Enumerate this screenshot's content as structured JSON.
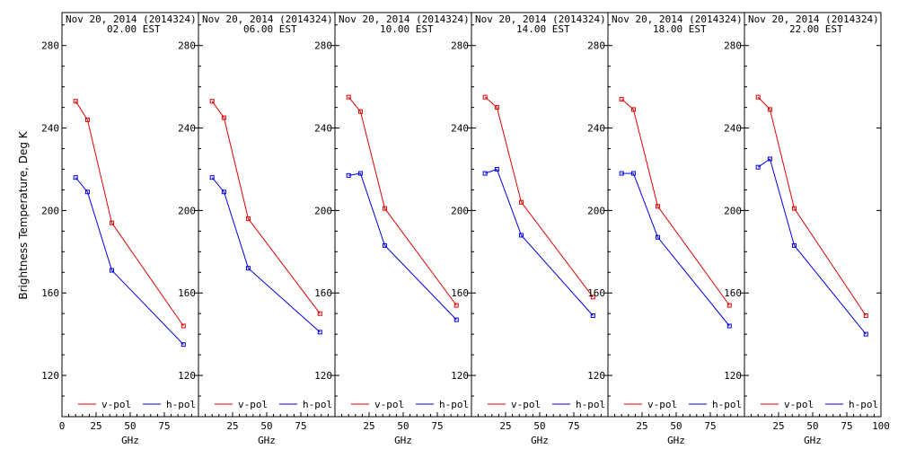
{
  "figure": {
    "ylabel": "Brightness Temperature, Deg K",
    "xlabel": "GHz",
    "colors": {
      "v": "#e00000",
      "h": "#0000e0"
    }
  },
  "chart_data": [
    {
      "type": "line",
      "title": "Nov 20, 2014 (2014324)",
      "subtitle": "02.00 EST",
      "xlabel": "GHz",
      "ylabel": "Brightness Temperature, Deg K",
      "xlim": [
        0,
        100
      ],
      "ylim": [
        100,
        296
      ],
      "xticks": [
        0,
        25,
        50,
        75
      ],
      "yticks": [
        120,
        160,
        200,
        240,
        280
      ],
      "legend": "bottom",
      "series": [
        {
          "name": "v-pol",
          "color": "#e00000",
          "x": [
            10,
            18.7,
            36.5,
            89
          ],
          "y": [
            253,
            244,
            194,
            144
          ]
        },
        {
          "name": "h-pol",
          "color": "#0000e0",
          "x": [
            10,
            18.7,
            36.5,
            89
          ],
          "y": [
            216,
            209,
            171,
            135
          ]
        }
      ]
    },
    {
      "type": "line",
      "title": "Nov 20, 2014 (2014324)",
      "subtitle": "06.00 EST",
      "xlabel": "GHz",
      "ylabel": "Brightness Temperature, Deg K",
      "xlim": [
        0,
        100
      ],
      "ylim": [
        100,
        296
      ],
      "xticks": [
        25,
        50,
        75
      ],
      "yticks": [
        120,
        160,
        200,
        240,
        280
      ],
      "legend": "bottom",
      "series": [
        {
          "name": "v-pol",
          "color": "#e00000",
          "x": [
            10,
            18.7,
            36.5,
            89
          ],
          "y": [
            253,
            245,
            196,
            150
          ]
        },
        {
          "name": "h-pol",
          "color": "#0000e0",
          "x": [
            10,
            18.7,
            36.5,
            89
          ],
          "y": [
            216,
            209,
            172,
            141
          ]
        }
      ]
    },
    {
      "type": "line",
      "title": "Nov 20, 2014 (2014324)",
      "subtitle": "10.00 EST",
      "xlabel": "GHz",
      "ylabel": "Brightness Temperature, Deg K",
      "xlim": [
        0,
        100
      ],
      "ylim": [
        100,
        296
      ],
      "xticks": [
        25,
        50,
        75
      ],
      "yticks": [
        120,
        160,
        200,
        240,
        280
      ],
      "legend": "bottom",
      "series": [
        {
          "name": "v-pol",
          "color": "#e00000",
          "x": [
            10,
            18.7,
            36.5,
            89
          ],
          "y": [
            255,
            248,
            201,
            154
          ]
        },
        {
          "name": "h-pol",
          "color": "#0000e0",
          "x": [
            10,
            18.7,
            36.5,
            89
          ],
          "y": [
            217,
            218,
            183,
            147
          ]
        }
      ]
    },
    {
      "type": "line",
      "title": "Nov 20, 2014 (2014324)",
      "subtitle": "14.00 EST",
      "xlabel": "GHz",
      "ylabel": "Brightness Temperature, Deg K",
      "xlim": [
        0,
        100
      ],
      "ylim": [
        100,
        296
      ],
      "xticks": [
        25,
        50,
        75
      ],
      "yticks": [
        120,
        160,
        200,
        240,
        280
      ],
      "legend": "bottom",
      "series": [
        {
          "name": "v-pol",
          "color": "#e00000",
          "x": [
            10,
            18.7,
            36.5,
            89
          ],
          "y": [
            255,
            250,
            204,
            158
          ]
        },
        {
          "name": "h-pol",
          "color": "#0000e0",
          "x": [
            10,
            18.7,
            36.5,
            89
          ],
          "y": [
            218,
            220,
            188,
            149
          ]
        }
      ]
    },
    {
      "type": "line",
      "title": "Nov 20, 2014 (2014324)",
      "subtitle": "18.00 EST",
      "xlabel": "GHz",
      "ylabel": "Brightness Temperature, Deg K",
      "xlim": [
        0,
        100
      ],
      "ylim": [
        100,
        296
      ],
      "xticks": [
        25,
        50,
        75
      ],
      "yticks": [
        120,
        160,
        200,
        240,
        280
      ],
      "legend": "bottom",
      "series": [
        {
          "name": "v-pol",
          "color": "#e00000",
          "x": [
            10,
            18.7,
            36.5,
            89
          ],
          "y": [
            254,
            249,
            202,
            154
          ]
        },
        {
          "name": "h-pol",
          "color": "#0000e0",
          "x": [
            10,
            18.7,
            36.5,
            89
          ],
          "y": [
            218,
            218,
            187,
            144
          ]
        }
      ]
    },
    {
      "type": "line",
      "title": "Nov 20, 2014 (2014324)",
      "subtitle": "22.00 EST",
      "xlabel": "GHz",
      "ylabel": "Brightness Temperature, Deg K",
      "xlim": [
        0,
        100
      ],
      "ylim": [
        100,
        296
      ],
      "xticks": [
        25,
        50,
        75,
        100
      ],
      "yticks": [
        120,
        160,
        200,
        240,
        280
      ],
      "legend": "bottom",
      "series": [
        {
          "name": "v-pol",
          "color": "#e00000",
          "x": [
            10,
            18.7,
            36.5,
            89
          ],
          "y": [
            255,
            249,
            201,
            149
          ]
        },
        {
          "name": "h-pol",
          "color": "#0000e0",
          "x": [
            10,
            18.7,
            36.5,
            89
          ],
          "y": [
            221,
            225,
            183,
            140
          ]
        }
      ]
    }
  ]
}
